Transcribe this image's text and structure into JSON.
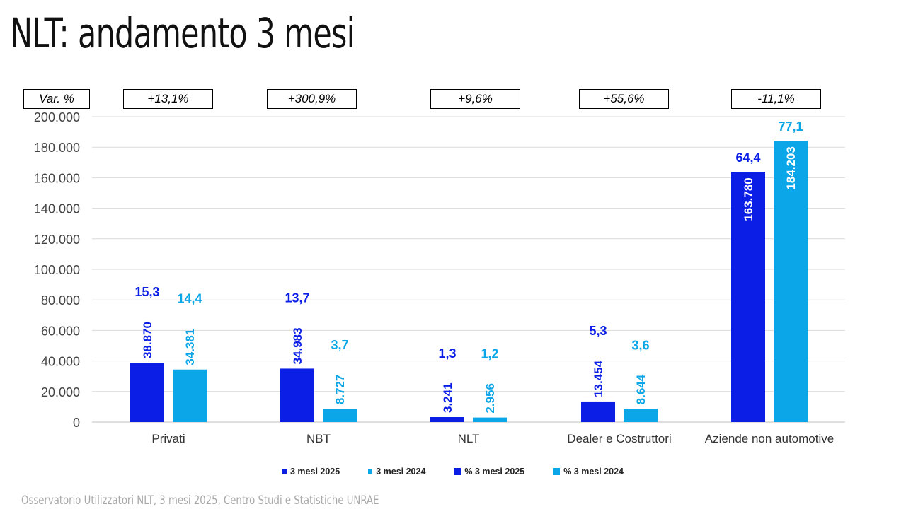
{
  "title": "NLT: andamento 3 mesi",
  "source": "Osservatorio Utilizzatori NLT, 3 mesi 2025, Centro Studi e Statistiche UNRAE",
  "var_label": "Var. %",
  "colors": {
    "series_2025": "#0a1ee6",
    "series_2024": "#0aa6e8",
    "grid": "#d9d9d9"
  },
  "legend": [
    {
      "label": "3 mesi 2025",
      "color": "#0a1ee6",
      "marker": "small"
    },
    {
      "label": "3 mesi 2024",
      "color": "#0aa6e8",
      "marker": "small"
    },
    {
      "label": "% 3 mesi 2025",
      "color": "#0a1ee6",
      "marker": "large"
    },
    {
      "label": "% 3 mesi 2024",
      "color": "#0aa6e8",
      "marker": "large"
    }
  ],
  "chart_data": {
    "type": "bar",
    "title": "NLT: andamento 3 mesi",
    "categories": [
      "Privati",
      "NBT",
      "NLT",
      "Dealer e Costruttori",
      "Aziende non automotive"
    ],
    "ylim": [
      0,
      200000
    ],
    "yticks": [
      0,
      20000,
      40000,
      60000,
      80000,
      100000,
      120000,
      140000,
      160000,
      180000,
      200000
    ],
    "ytick_labels": [
      "0",
      "20.000",
      "40.000",
      "60.000",
      "80.000",
      "100.000",
      "120.000",
      "140.000",
      "160.000",
      "180.000",
      "200.000"
    ],
    "grid": true,
    "legend_position": "bottom",
    "series": [
      {
        "name": "3 mesi 2025",
        "values": [
          38870,
          34983,
          3241,
          13454,
          163780
        ],
        "value_labels": [
          "38.870",
          "34.983",
          "3.241",
          "13.454",
          "163.780"
        ],
        "percent_name": "% 3 mesi 2025",
        "percent_labels": [
          "15,3",
          "13,7",
          "1,3",
          "5,3",
          "64,4"
        ]
      },
      {
        "name": "3 mesi 2024",
        "values": [
          34381,
          8727,
          2956,
          8644,
          184203
        ],
        "value_labels": [
          "34.381",
          "8.727",
          "2.956",
          "8.644",
          "184.203"
        ],
        "percent_name": "% 3 mesi 2024",
        "percent_labels": [
          "14,4",
          "3,7",
          "1,2",
          "3,6",
          "77,1"
        ]
      }
    ],
    "variations": [
      "+13,1%",
      "+300,9%",
      "+9,6%",
      "+55,6%",
      "-11,1%"
    ]
  }
}
